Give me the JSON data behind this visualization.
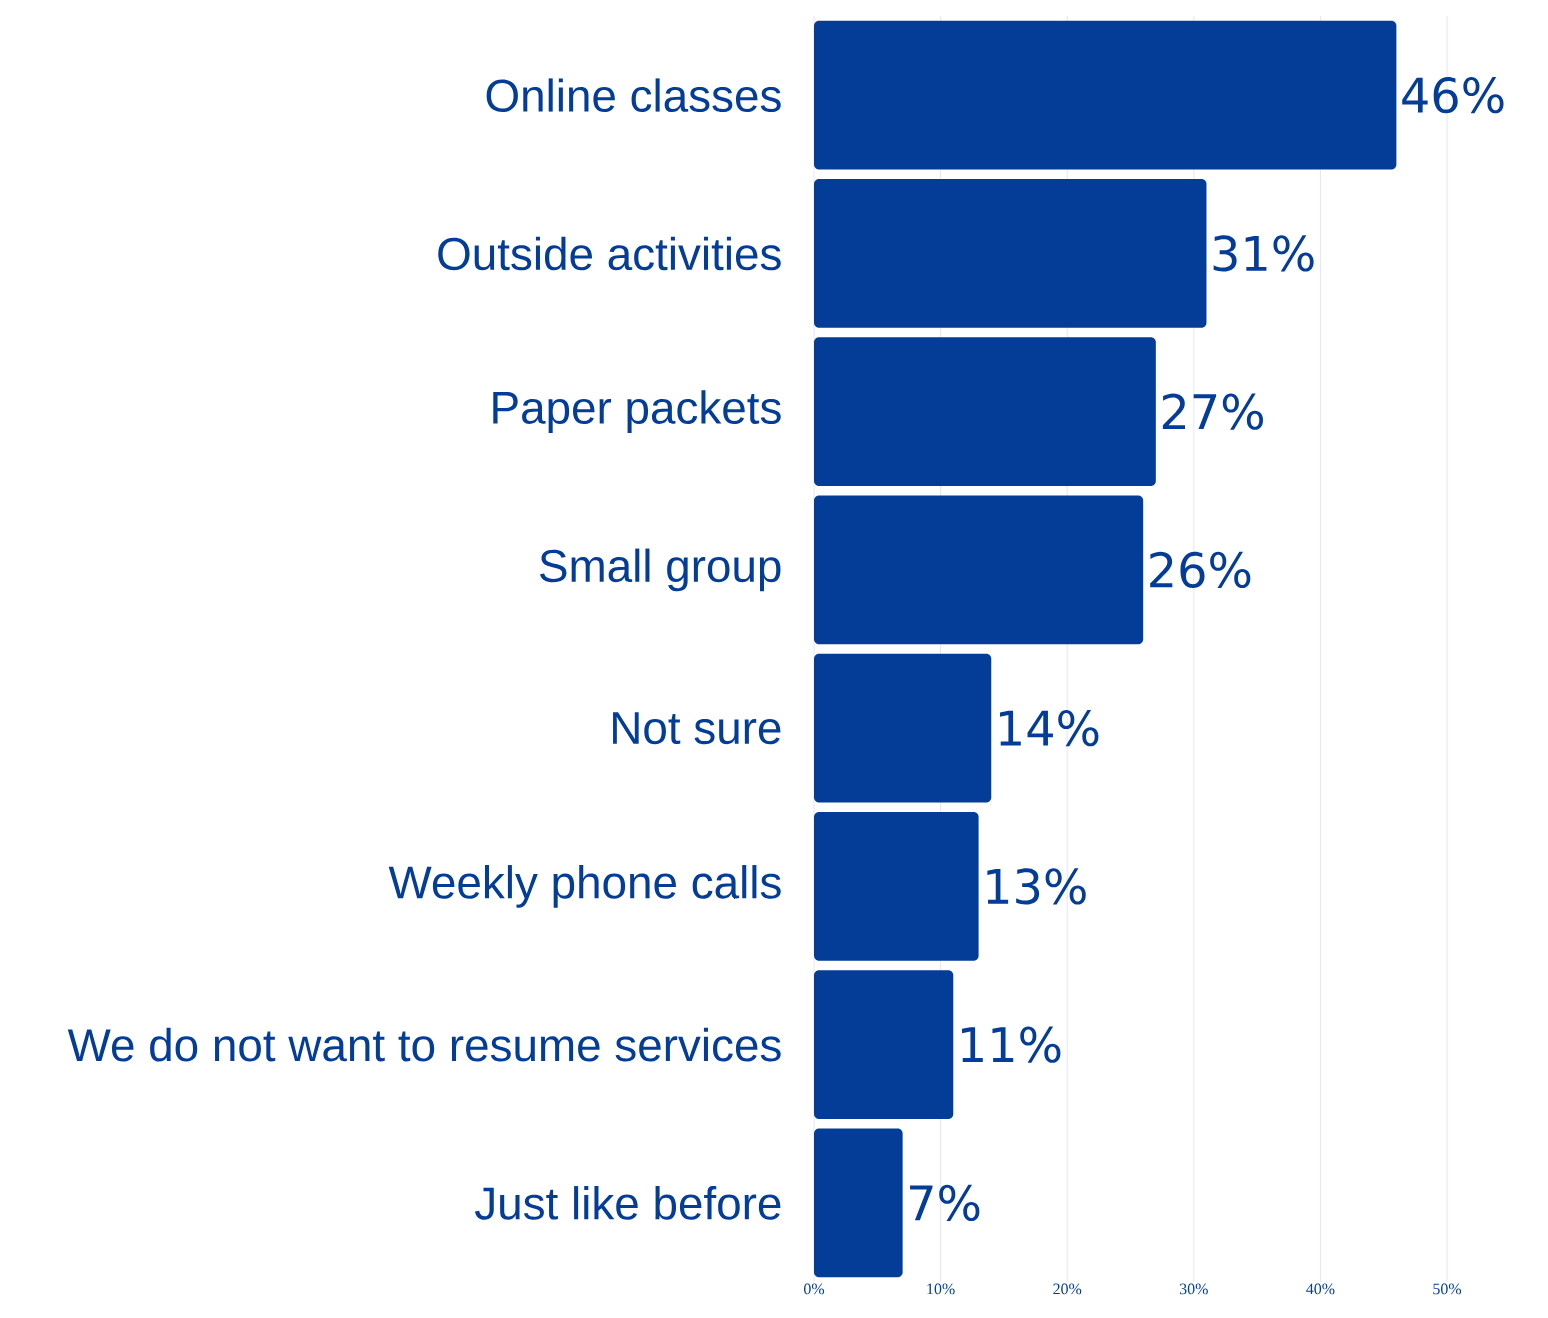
{
  "chart_data": {
    "type": "bar",
    "orientation": "horizontal",
    "categories": [
      "Online classes",
      "Outside activities",
      "Paper packets",
      "Small group",
      "Not sure",
      "Weekly phone calls",
      "We do not want to resume services",
      "Just like before"
    ],
    "values": [
      46,
      31,
      27,
      26,
      14,
      13,
      11,
      7
    ],
    "value_labels": [
      "46%",
      "31%",
      "27%",
      "26%",
      "14%",
      "13%",
      "11%",
      "7%"
    ],
    "color": "#043d98",
    "xlim": [
      0,
      50
    ],
    "xticks": [
      {
        "value": 0,
        "label": "0%"
      },
      {
        "value": 10,
        "label": "10%"
      },
      {
        "value": 20,
        "label": "20%"
      },
      {
        "value": 30,
        "label": "30%"
      },
      {
        "value": 40,
        "label": "40%"
      },
      {
        "value": 50,
        "label": "50%"
      }
    ],
    "grid": "x"
  }
}
